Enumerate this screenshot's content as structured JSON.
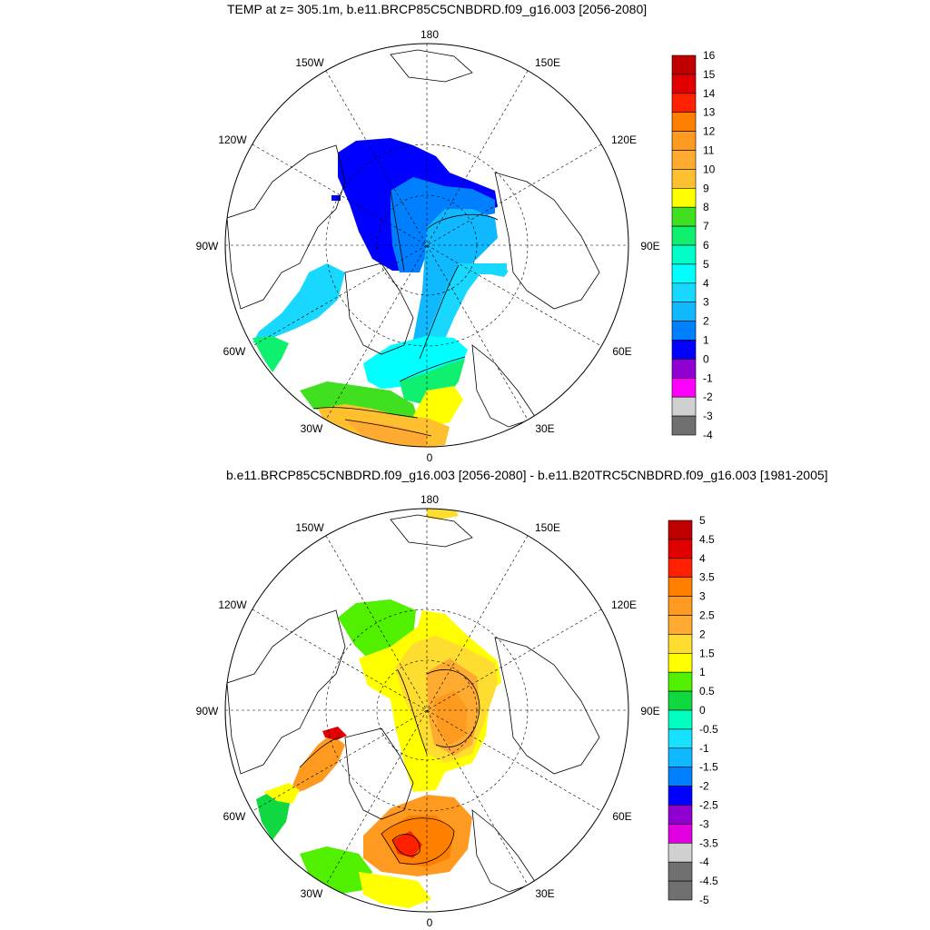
{
  "panels": [
    {
      "title": "TEMP at z= 305.1m, b.e11.BRCP85C5CNBDRD.f09_g16.003 [2056-2080]",
      "lon_labels": {
        "top": "180",
        "bottom": "0",
        "left": "90W",
        "right": "90E",
        "nw1": "150W",
        "nw2": "120W",
        "ne1": "150E",
        "ne2": "120E",
        "sw1": "60W",
        "sw2": "30W",
        "se1": "60E",
        "se2": "30E"
      },
      "colorbar": {
        "labels": [
          "16",
          "15",
          "14",
          "13",
          "12",
          "11",
          "10",
          "9",
          "8",
          "7",
          "6",
          "5",
          "4",
          "3",
          "2",
          "1",
          "0",
          "-1",
          "-2",
          "-3",
          "-4"
        ],
        "colors": [
          "#c00000",
          "#e00000",
          "#ff2000",
          "#ff8000",
          "#ff9a20",
          "#ffaa30",
          "#ffc030",
          "#ffff00",
          "#40e020",
          "#10f070",
          "#00ffc8",
          "#00ffff",
          "#18d8ff",
          "#10b8ff",
          "#0080ff",
          "#0000ff",
          "#9000d0",
          "#ff00ff",
          "#d0d0d0",
          "#707070"
        ]
      }
    },
    {
      "title": "b.e11.BRCP85C5CNBDRD.f09_g16.003 [2056-2080] - b.e11.B20TRC5CNBDRD.f09_g16.003 [1981-2005]",
      "lon_labels": {
        "top": "180",
        "bottom": "0",
        "left": "90W",
        "right": "90E",
        "nw1": "150W",
        "nw2": "120W",
        "ne1": "150E",
        "ne2": "120E",
        "sw1": "60W",
        "sw2": "30W",
        "se1": "60E",
        "se2": "30E"
      },
      "colorbar": {
        "labels": [
          "5",
          "4.5",
          "4",
          "3.5",
          "3",
          "2.5",
          "2",
          "1.5",
          "1",
          "0.5",
          "0",
          "-0.5",
          "-1",
          "-1.5",
          "-2",
          "-2.5",
          "-3",
          "-3.5",
          "-4",
          "-4.5",
          "-5"
        ],
        "colors": [
          "#c00000",
          "#e00000",
          "#ff2000",
          "#ff8000",
          "#ff9a20",
          "#ffaa30",
          "#ffdd30",
          "#ffff00",
          "#50f000",
          "#10d840",
          "#00ffc0",
          "#18e0ff",
          "#10b8ff",
          "#0080ff",
          "#0000ff",
          "#9000d0",
          "#e000e0",
          "#d0d0d0",
          "#707070",
          "#707070"
        ]
      }
    }
  ]
}
